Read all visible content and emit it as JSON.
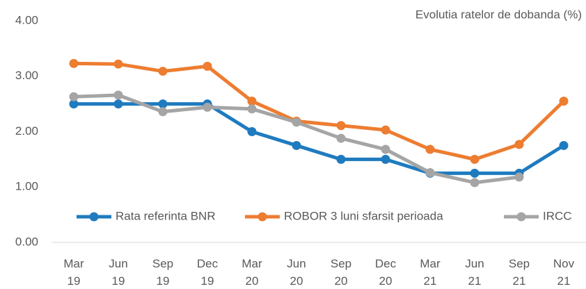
{
  "chart_data": {
    "type": "line",
    "title": "Evolutia ratelor de dobanda  (%)",
    "categories": [
      "Mar 19",
      "Jun 19",
      "Sep 19",
      "Dec 19",
      "Mar 20",
      "Jun 20",
      "Sep 20",
      "Dec 20",
      "Mar 21",
      "Jun 21",
      "Sep 21",
      "Nov 21"
    ],
    "series": [
      {
        "name": "Rata referinta BNR",
        "color": "#1f7bbf",
        "values": [
          2.5,
          2.5,
          2.5,
          2.5,
          2.0,
          1.75,
          1.5,
          1.5,
          1.25,
          1.25,
          1.25,
          1.75
        ]
      },
      {
        "name": "ROBOR 3 luni sfarsit perioada",
        "color": "#ed7d31",
        "values": [
          3.23,
          3.22,
          3.09,
          3.18,
          2.55,
          2.19,
          2.11,
          2.03,
          1.68,
          1.5,
          1.77,
          2.55
        ]
      },
      {
        "name": "IRCC",
        "color": "#a5a5a5",
        "values": [
          2.63,
          2.66,
          2.36,
          2.44,
          2.41,
          2.17,
          1.88,
          1.68,
          1.26,
          1.08,
          1.18,
          null
        ]
      }
    ],
    "ylim": [
      0,
      4
    ],
    "yticks": [
      {
        "value": 0,
        "label": "0.00"
      },
      {
        "value": 1,
        "label": "1.00"
      },
      {
        "value": 2,
        "label": "2.00"
      },
      {
        "value": 3,
        "label": "3.00"
      },
      {
        "value": 4,
        "label": "4.00"
      }
    ],
    "grid": false,
    "legend": "inside-bottom"
  }
}
